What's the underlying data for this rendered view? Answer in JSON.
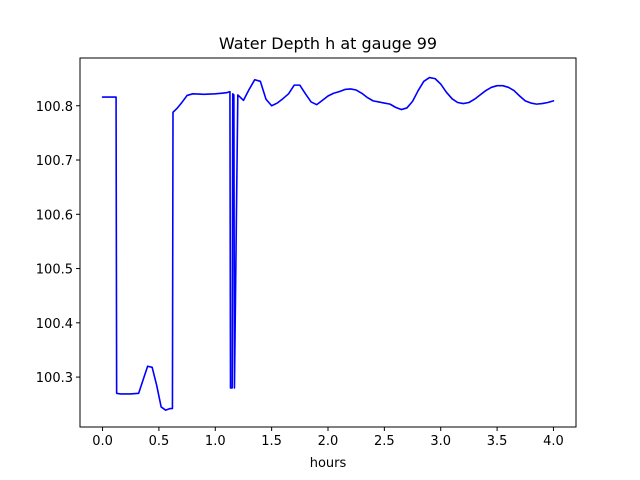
{
  "chart_data": {
    "type": "line",
    "title": "Water Depth h at gauge 99",
    "xlabel": "hours",
    "ylabel": "",
    "xlim": [
      -0.2,
      4.2
    ],
    "ylim": [
      100.208,
      100.888
    ],
    "xticks": [
      0.0,
      0.5,
      1.0,
      1.5,
      2.0,
      2.5,
      3.0,
      3.5,
      4.0
    ],
    "xtick_labels": [
      "0.0",
      "0.5",
      "1.0",
      "1.5",
      "2.0",
      "2.5",
      "3.0",
      "3.5",
      "4.0"
    ],
    "yticks": [
      100.3,
      100.4,
      100.5,
      100.6,
      100.7,
      100.8
    ],
    "ytick_labels": [
      "100.3",
      "100.4",
      "100.5",
      "100.6",
      "100.7",
      "100.8"
    ],
    "grid": false,
    "legend": "none",
    "series": [
      {
        "color": "#0000ff",
        "x": [
          0.0,
          0.12,
          0.125,
          0.16,
          0.25,
          0.32,
          0.36,
          0.4,
          0.44,
          0.48,
          0.52,
          0.56,
          0.6,
          0.62,
          0.625,
          0.66,
          0.7,
          0.75,
          0.8,
          0.9,
          1.0,
          1.05,
          1.1,
          1.13,
          1.135,
          1.15,
          1.155,
          1.165,
          1.17,
          1.2,
          1.25,
          1.3,
          1.35,
          1.4,
          1.45,
          1.5,
          1.55,
          1.6,
          1.65,
          1.7,
          1.75,
          1.8,
          1.85,
          1.9,
          1.95,
          2.0,
          2.05,
          2.1,
          2.15,
          2.2,
          2.25,
          2.3,
          2.35,
          2.4,
          2.45,
          2.5,
          2.55,
          2.6,
          2.65,
          2.7,
          2.75,
          2.8,
          2.85,
          2.9,
          2.95,
          3.0,
          3.05,
          3.1,
          3.15,
          3.2,
          3.25,
          3.3,
          3.35,
          3.4,
          3.45,
          3.5,
          3.55,
          3.6,
          3.65,
          3.7,
          3.75,
          3.8,
          3.85,
          3.9,
          3.95,
          4.0
        ],
        "y": [
          100.816,
          100.816,
          100.27,
          100.269,
          100.269,
          100.27,
          100.295,
          100.32,
          100.318,
          100.285,
          100.245,
          100.239,
          100.242,
          100.242,
          100.788,
          100.795,
          100.805,
          100.819,
          100.822,
          100.821,
          100.822,
          100.823,
          100.824,
          100.826,
          100.28,
          100.28,
          100.822,
          100.82,
          100.28,
          100.82,
          100.81,
          100.83,
          100.848,
          100.845,
          100.812,
          100.8,
          100.805,
          100.813,
          100.822,
          100.838,
          100.838,
          100.822,
          100.807,
          100.802,
          100.81,
          100.818,
          100.823,
          100.826,
          100.83,
          100.831,
          100.829,
          100.823,
          100.815,
          100.809,
          100.807,
          100.805,
          100.803,
          100.797,
          100.793,
          100.796,
          100.808,
          100.828,
          100.845,
          100.852,
          100.85,
          100.84,
          100.825,
          100.813,
          100.806,
          100.804,
          100.806,
          100.812,
          100.82,
          100.828,
          100.834,
          100.837,
          100.837,
          100.834,
          100.828,
          100.818,
          100.809,
          100.805,
          100.803,
          100.804,
          100.806,
          100.809
        ]
      }
    ]
  }
}
